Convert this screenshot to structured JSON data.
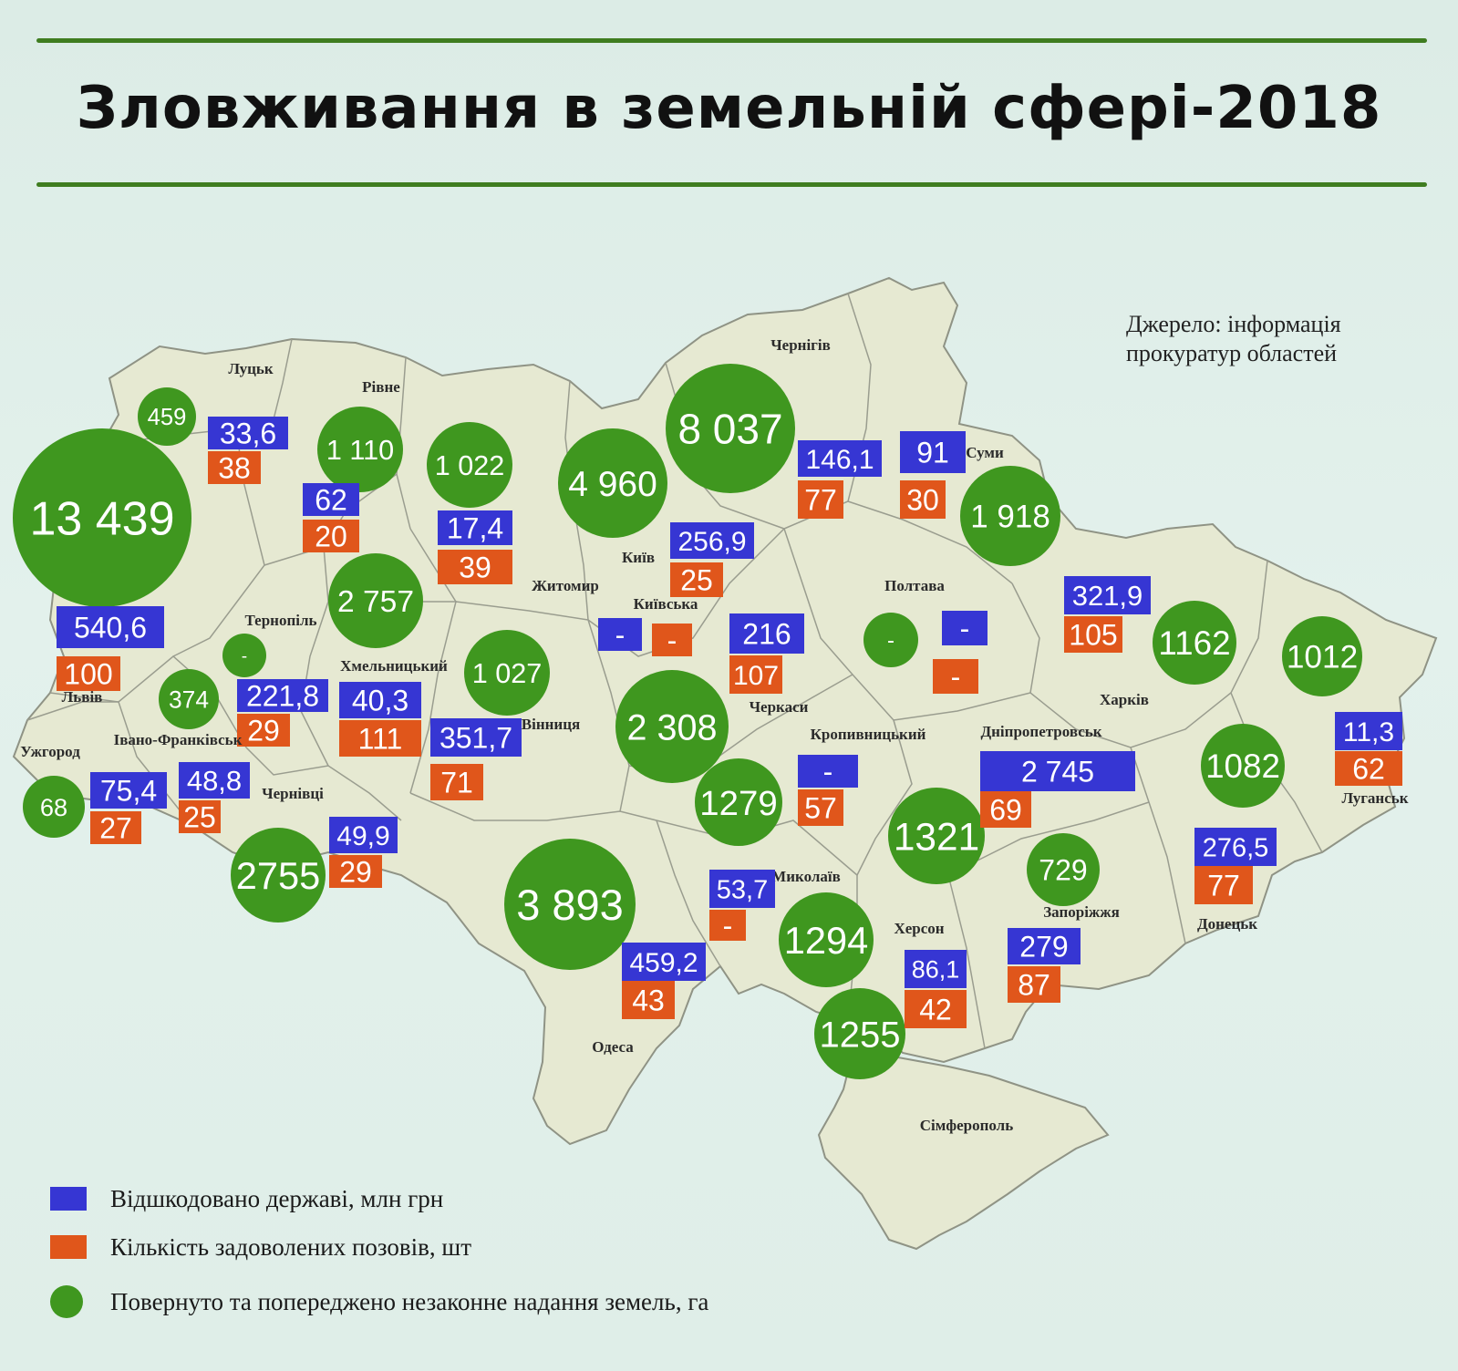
{
  "title": "Зловживання в земельній сфері-2018",
  "source": "Джерело: інформація прокуратур областей",
  "colors": {
    "blue": "#3636d3",
    "orange": "#e0561b",
    "green": "#3f971f"
  },
  "legend": [
    {
      "kind": "blue",
      "label": "Відшкодовано державі, млн грн"
    },
    {
      "kind": "orange",
      "label": "Кількість задоволених позовів, шт"
    },
    {
      "kind": "green",
      "label": "Повернуто та попереджено незаконне надання земель, га"
    }
  ],
  "regions": [
    {
      "city": "Луцьк",
      "land": "459",
      "compensated": "33,6",
      "lawsuits": "38"
    },
    {
      "city": "Рівне",
      "land": "1 110",
      "compensated": "62",
      "lawsuits": "20"
    },
    {
      "city": "Львів",
      "land": "13 439",
      "compensated": "540,6",
      "lawsuits": "100"
    },
    {
      "city": "Тернопіль",
      "land": "-",
      "compensated": "221,8",
      "lawsuits": "29"
    },
    {
      "city": "Хмельницький",
      "land": "2 757",
      "compensated": "40,3",
      "lawsuits": "111"
    },
    {
      "city": "Житомир",
      "land": "1 022",
      "compensated": "17,4",
      "lawsuits": "39"
    },
    {
      "city": "Київ",
      "land": "4 960",
      "compensated": "256,9",
      "lawsuits": "25"
    },
    {
      "city": "Київська",
      "land": "",
      "compensated": "-",
      "lawsuits": "-"
    },
    {
      "city": "Чернігів",
      "land": "8 037",
      "compensated": "146,1",
      "lawsuits": "77"
    },
    {
      "city": "Суми",
      "land": "1 918",
      "compensated": "91",
      "lawsuits": "30"
    },
    {
      "city": "Полтава",
      "land": "-",
      "compensated": "-",
      "lawsuits": "-"
    },
    {
      "city": "Харків",
      "land": "1162",
      "compensated": "321,9",
      "lawsuits": "105"
    },
    {
      "city": "Луганськ",
      "land": "1012",
      "compensated": "11,3",
      "lawsuits": "62"
    },
    {
      "city": "Донецьк",
      "land": "1082",
      "compensated": "276,5",
      "lawsuits": "77"
    },
    {
      "city": "Вінниця",
      "land": "1 027",
      "compensated": "351,7",
      "lawsuits": "71"
    },
    {
      "city": "Черкаси",
      "land": "2 308",
      "compensated": "216",
      "lawsuits": "107"
    },
    {
      "city": "Кропивницький",
      "land": "1279",
      "compensated": "-",
      "lawsuits": "57"
    },
    {
      "city": "Дніпропетровськ",
      "land": "1321",
      "compensated": "2 745",
      "lawsuits": "69"
    },
    {
      "city": "Запоріжжя",
      "land": "729",
      "compensated": "279",
      "lawsuits": "87"
    },
    {
      "city": "Херсон",
      "land": "1255",
      "compensated": "86,1",
      "lawsuits": "42"
    },
    {
      "city": "Миколаїв",
      "land": "1294",
      "compensated": "53,7",
      "lawsuits": "-"
    },
    {
      "city": "Одеса",
      "land": "3 893",
      "compensated": "459,2",
      "lawsuits": "43"
    },
    {
      "city": "Івано-Франківськ",
      "land": "374",
      "compensated": "48,8",
      "lawsuits": "25"
    },
    {
      "city": "Ужгород",
      "land": "68",
      "compensated": "75,4",
      "lawsuits": "27"
    },
    {
      "city": "Чернівці",
      "land": "2755",
      "compensated": "49,9",
      "lawsuits": "29"
    },
    {
      "city": "Сімферополь",
      "land": "",
      "compensated": "",
      "lawsuits": ""
    }
  ]
}
